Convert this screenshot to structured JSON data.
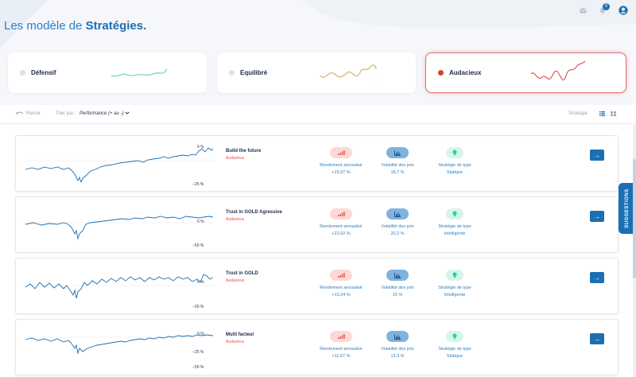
{
  "header": {
    "title_prefix": "Les modèle de ",
    "title_bold": "Stratégies.",
    "notification_count": "0"
  },
  "categories": [
    {
      "label": "Défensif",
      "dot_color": "#dde2e8",
      "line_color": "#7fd3c9"
    },
    {
      "label": "Equilibré",
      "dot_color": "#dde2e8",
      "line_color": "#d6b872"
    },
    {
      "label": "Audacieux",
      "dot_color": "#d2432f",
      "line_color": "#d84a50",
      "active": true
    }
  ],
  "toolbar": {
    "retour": "Retour",
    "sort_label": "Trier par :",
    "sort_value": "Performance (+ au -)",
    "strategie": "Stratégie"
  },
  "metric_labels": {
    "rendement": "Rendement annualisé",
    "volatilite": "Volatilité des prix",
    "type": "Stratégie de type"
  },
  "strategies": [
    {
      "name": "Build the future",
      "category": "Audacieux",
      "rendement": "+26,97 %",
      "volatilite": "18,7 %",
      "type": "Statique",
      "axis_top": "0 %",
      "axis_bottom": "−25 %"
    },
    {
      "name": "Trust in GOLD Agressive",
      "category": "Audacieux",
      "rendement": "+22,62 %",
      "volatilite": "20,2 %",
      "type": "Intelligente",
      "axis_top": "0 %",
      "axis_bottom": "−50 %"
    },
    {
      "name": "Trust in GOLD",
      "category": "Audacieux",
      "rendement": "+13,24 %",
      "volatilite": "15 %",
      "type": "Intelligente",
      "axis_top": "0 %",
      "axis_bottom": "−20 %"
    },
    {
      "name": "Multi facteur",
      "category": "Audacieux",
      "rendement": "+11,67 %",
      "volatilite": "13,3 %",
      "type": "Statique",
      "axis_top": "0 %",
      "axis_mid": "−25 %",
      "axis_bottom": "−50 %"
    }
  ],
  "suggestions_label": "SUGGESTIONS",
  "colors": {
    "accent": "#1b6fb3",
    "danger": "#e2554b"
  }
}
